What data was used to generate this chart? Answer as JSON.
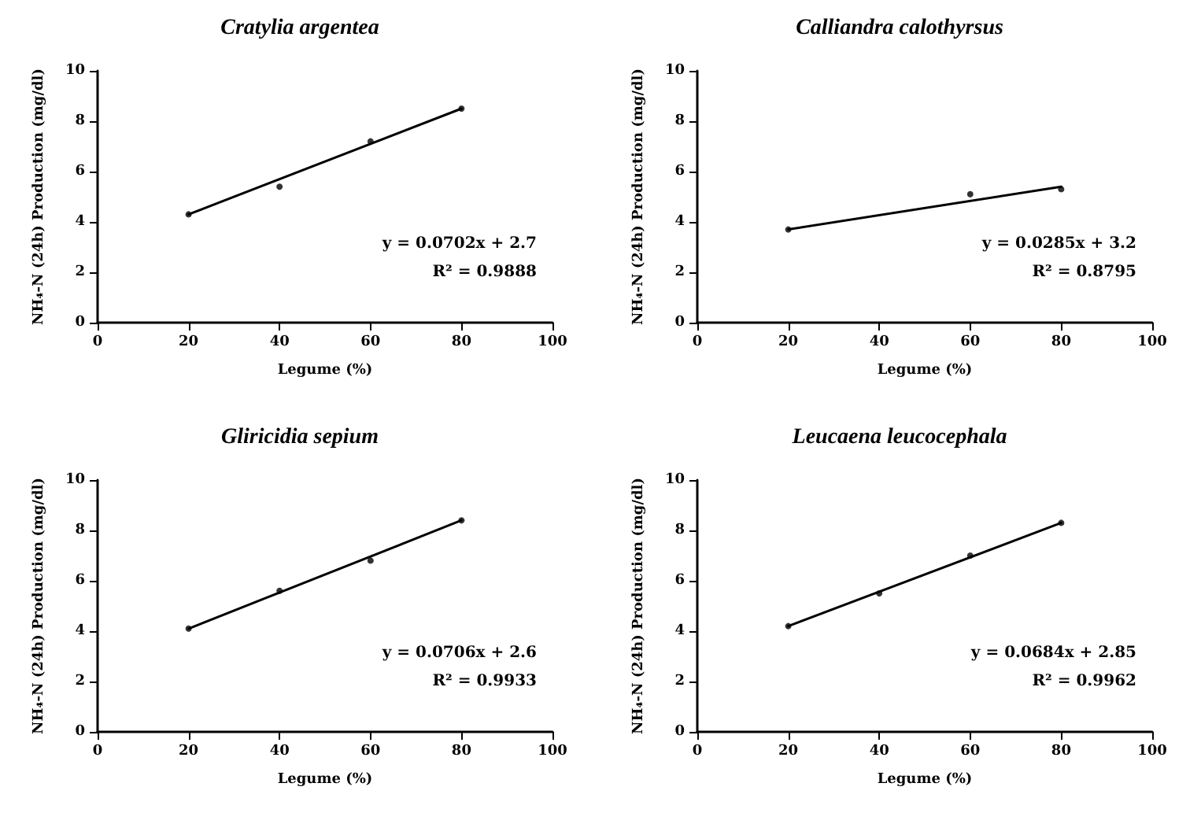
{
  "chart_data": [
    {
      "type": "scatter",
      "title": "Cratylia argentea",
      "xlabel": "Legume (%)",
      "ylabel": "NH₄-N (24h) Production (mg/dl)",
      "xlim": [
        0,
        100
      ],
      "xticks": [
        0,
        20,
        40,
        60,
        80,
        100
      ],
      "ylim": [
        0,
        10
      ],
      "yticks": [
        0,
        2,
        4,
        6,
        8,
        10
      ],
      "grid": false,
      "annotations": [
        "y = 0.0702x + 2.7",
        "R² = 0.9888"
      ],
      "series": [
        {
          "color": "#000000",
          "marker": "circle",
          "x": [
            20,
            40,
            60,
            80
          ],
          "values": [
            4.3,
            5.4,
            7.2,
            8.5
          ]
        },
        {
          "type": "line",
          "color": "#000000",
          "marker": "none",
          "line_style": "solid",
          "x": [
            20,
            80
          ],
          "values": [
            4.3,
            8.5
          ]
        }
      ]
    },
    {
      "type": "scatter",
      "title": "Calliandra calothyrsus",
      "xlabel": "Legume (%)",
      "ylabel": "NH₄-N (24h) Production (mg/dl)",
      "xlim": [
        0,
        100
      ],
      "xticks": [
        0,
        20,
        40,
        60,
        80,
        100
      ],
      "ylim": [
        0,
        10
      ],
      "yticks": [
        0,
        2,
        4,
        6,
        8,
        10
      ],
      "grid": false,
      "annotations": [
        "y = 0.0285x + 3.2",
        "R² = 0.8795"
      ],
      "series": [
        {
          "color": "#000000",
          "marker": "circle",
          "x": [
            20,
            60,
            80
          ],
          "values": [
            3.7,
            5.1,
            5.3
          ]
        },
        {
          "type": "line",
          "color": "#000000",
          "marker": "none",
          "line_style": "solid",
          "x": [
            20,
            80
          ],
          "values": [
            3.7,
            5.4
          ]
        }
      ]
    },
    {
      "type": "scatter",
      "title": "Gliricidia sepium",
      "xlabel": "Legume (%)",
      "ylabel": "NH₄-N (24h) Production (mg/dl)",
      "xlim": [
        0,
        100
      ],
      "xticks": [
        0,
        20,
        40,
        60,
        80,
        100
      ],
      "ylim": [
        0,
        10
      ],
      "yticks": [
        0,
        2,
        4,
        6,
        8,
        10
      ],
      "grid": false,
      "annotations": [
        "y = 0.0706x + 2.6",
        "R² = 0.9933"
      ],
      "series": [
        {
          "color": "#000000",
          "marker": "circle",
          "x": [
            20,
            40,
            60,
            80
          ],
          "values": [
            4.1,
            5.6,
            6.8,
            8.4
          ]
        },
        {
          "type": "line",
          "color": "#000000",
          "marker": "none",
          "line_style": "solid",
          "x": [
            20,
            80
          ],
          "values": [
            4.1,
            8.4
          ]
        }
      ]
    },
    {
      "type": "scatter",
      "title": "Leucaena leucocephala",
      "xlabel": "Legume (%)",
      "ylabel": "NH₄-N (24h) Production (mg/dl)",
      "xlim": [
        0,
        100
      ],
      "xticks": [
        0,
        20,
        40,
        60,
        80,
        100
      ],
      "ylim": [
        0,
        10
      ],
      "yticks": [
        0,
        2,
        4,
        6,
        8,
        10
      ],
      "grid": false,
      "annotations": [
        "y = 0.0684x + 2.85",
        "R² = 0.9962"
      ],
      "series": [
        {
          "color": "#000000",
          "marker": "circle",
          "x": [
            20,
            40,
            60,
            80
          ],
          "values": [
            4.2,
            5.5,
            7.0,
            8.3
          ]
        },
        {
          "type": "line",
          "color": "#000000",
          "marker": "none",
          "line_style": "solid",
          "x": [
            20,
            80
          ],
          "values": [
            4.2,
            8.3
          ]
        }
      ]
    }
  ]
}
